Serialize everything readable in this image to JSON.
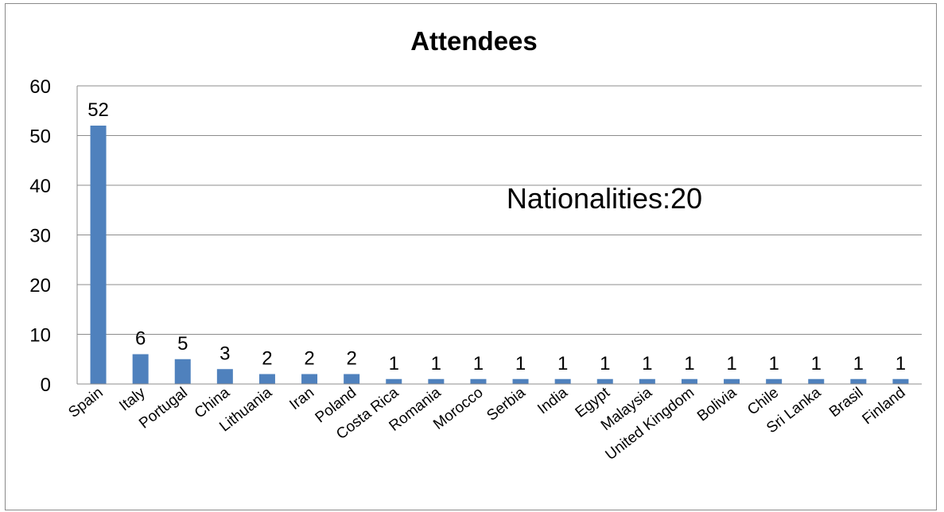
{
  "chart_data": {
    "type": "bar",
    "title": "Attendees",
    "annotation": "Nationalities:20",
    "xlabel": "",
    "ylabel": "",
    "ylim": [
      0,
      60
    ],
    "yticks": [
      0,
      10,
      20,
      30,
      40,
      50,
      60
    ],
    "grid": true,
    "legend": "none",
    "bar_color": "#4f81bd",
    "categories": [
      "Spain",
      "Italy",
      "Portugal",
      "China",
      "Lithuania",
      "Iran",
      "Poland",
      "Costa Rica",
      "Romania",
      "Morocco",
      "Serbia",
      "India",
      "Egypt",
      "Malaysia",
      "United Kingdom",
      "Bolivia",
      "Chile",
      "Sri Lanka",
      "Brasil",
      "Finland"
    ],
    "values": [
      52,
      6,
      5,
      3,
      2,
      2,
      2,
      1,
      1,
      1,
      1,
      1,
      1,
      1,
      1,
      1,
      1,
      1,
      1,
      1
    ]
  }
}
